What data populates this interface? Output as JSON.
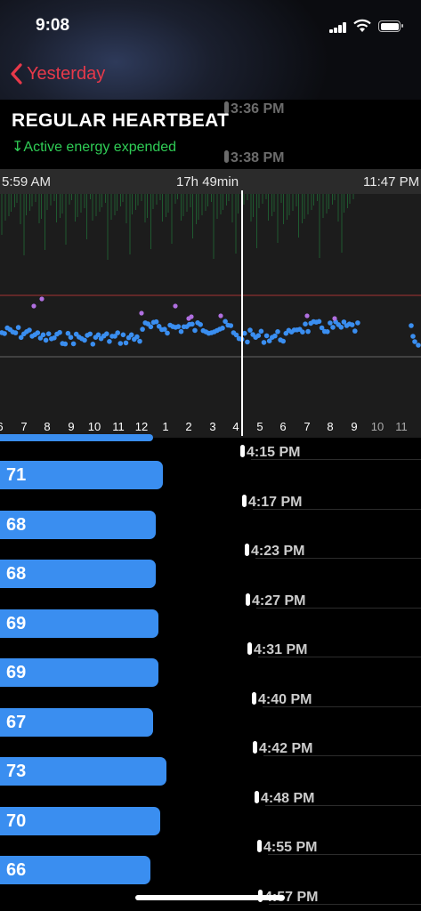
{
  "status": {
    "time": "9:08"
  },
  "nav": {
    "back_label": "Yesterday"
  },
  "ghost_times": [
    "3:36 PM",
    "3:38 PM"
  ],
  "header": {
    "title": "REGULAR HEARTBEAT",
    "subtitle": "↧Active energy expended"
  },
  "range": {
    "start": "5:59 AM",
    "duration": "17h 49min",
    "end": "11:47 PM"
  },
  "axis_labels": [
    "6",
    "7",
    "8",
    "9",
    "10",
    "11",
    "12",
    "1",
    "2",
    "3",
    "4",
    "5",
    "6",
    "7",
    "8",
    "9",
    "10",
    "11"
  ],
  "colors": {
    "accent_red": "#e8394a",
    "green": "#2fcc55",
    "bar_blue": "#3a8ef0",
    "dot_blue": "#3a8ef0",
    "dot_purple": "#b06fe0"
  },
  "readings": [
    {
      "value": "71",
      "time": "4:15 PM"
    },
    {
      "value": "68",
      "time": "4:17 PM"
    },
    {
      "value": "68",
      "time": "4:23 PM"
    },
    {
      "value": "69",
      "time": "4:27 PM"
    },
    {
      "value": "69",
      "time": "4:31 PM"
    },
    {
      "value": "67",
      "time": "4:40 PM"
    },
    {
      "value": "73",
      "time": "4:42 PM"
    },
    {
      "value": "70",
      "time": "4:48 PM"
    },
    {
      "value": "66",
      "time": "4:55 PM"
    },
    {
      "value": "",
      "time": "4:57 PM"
    }
  ]
}
